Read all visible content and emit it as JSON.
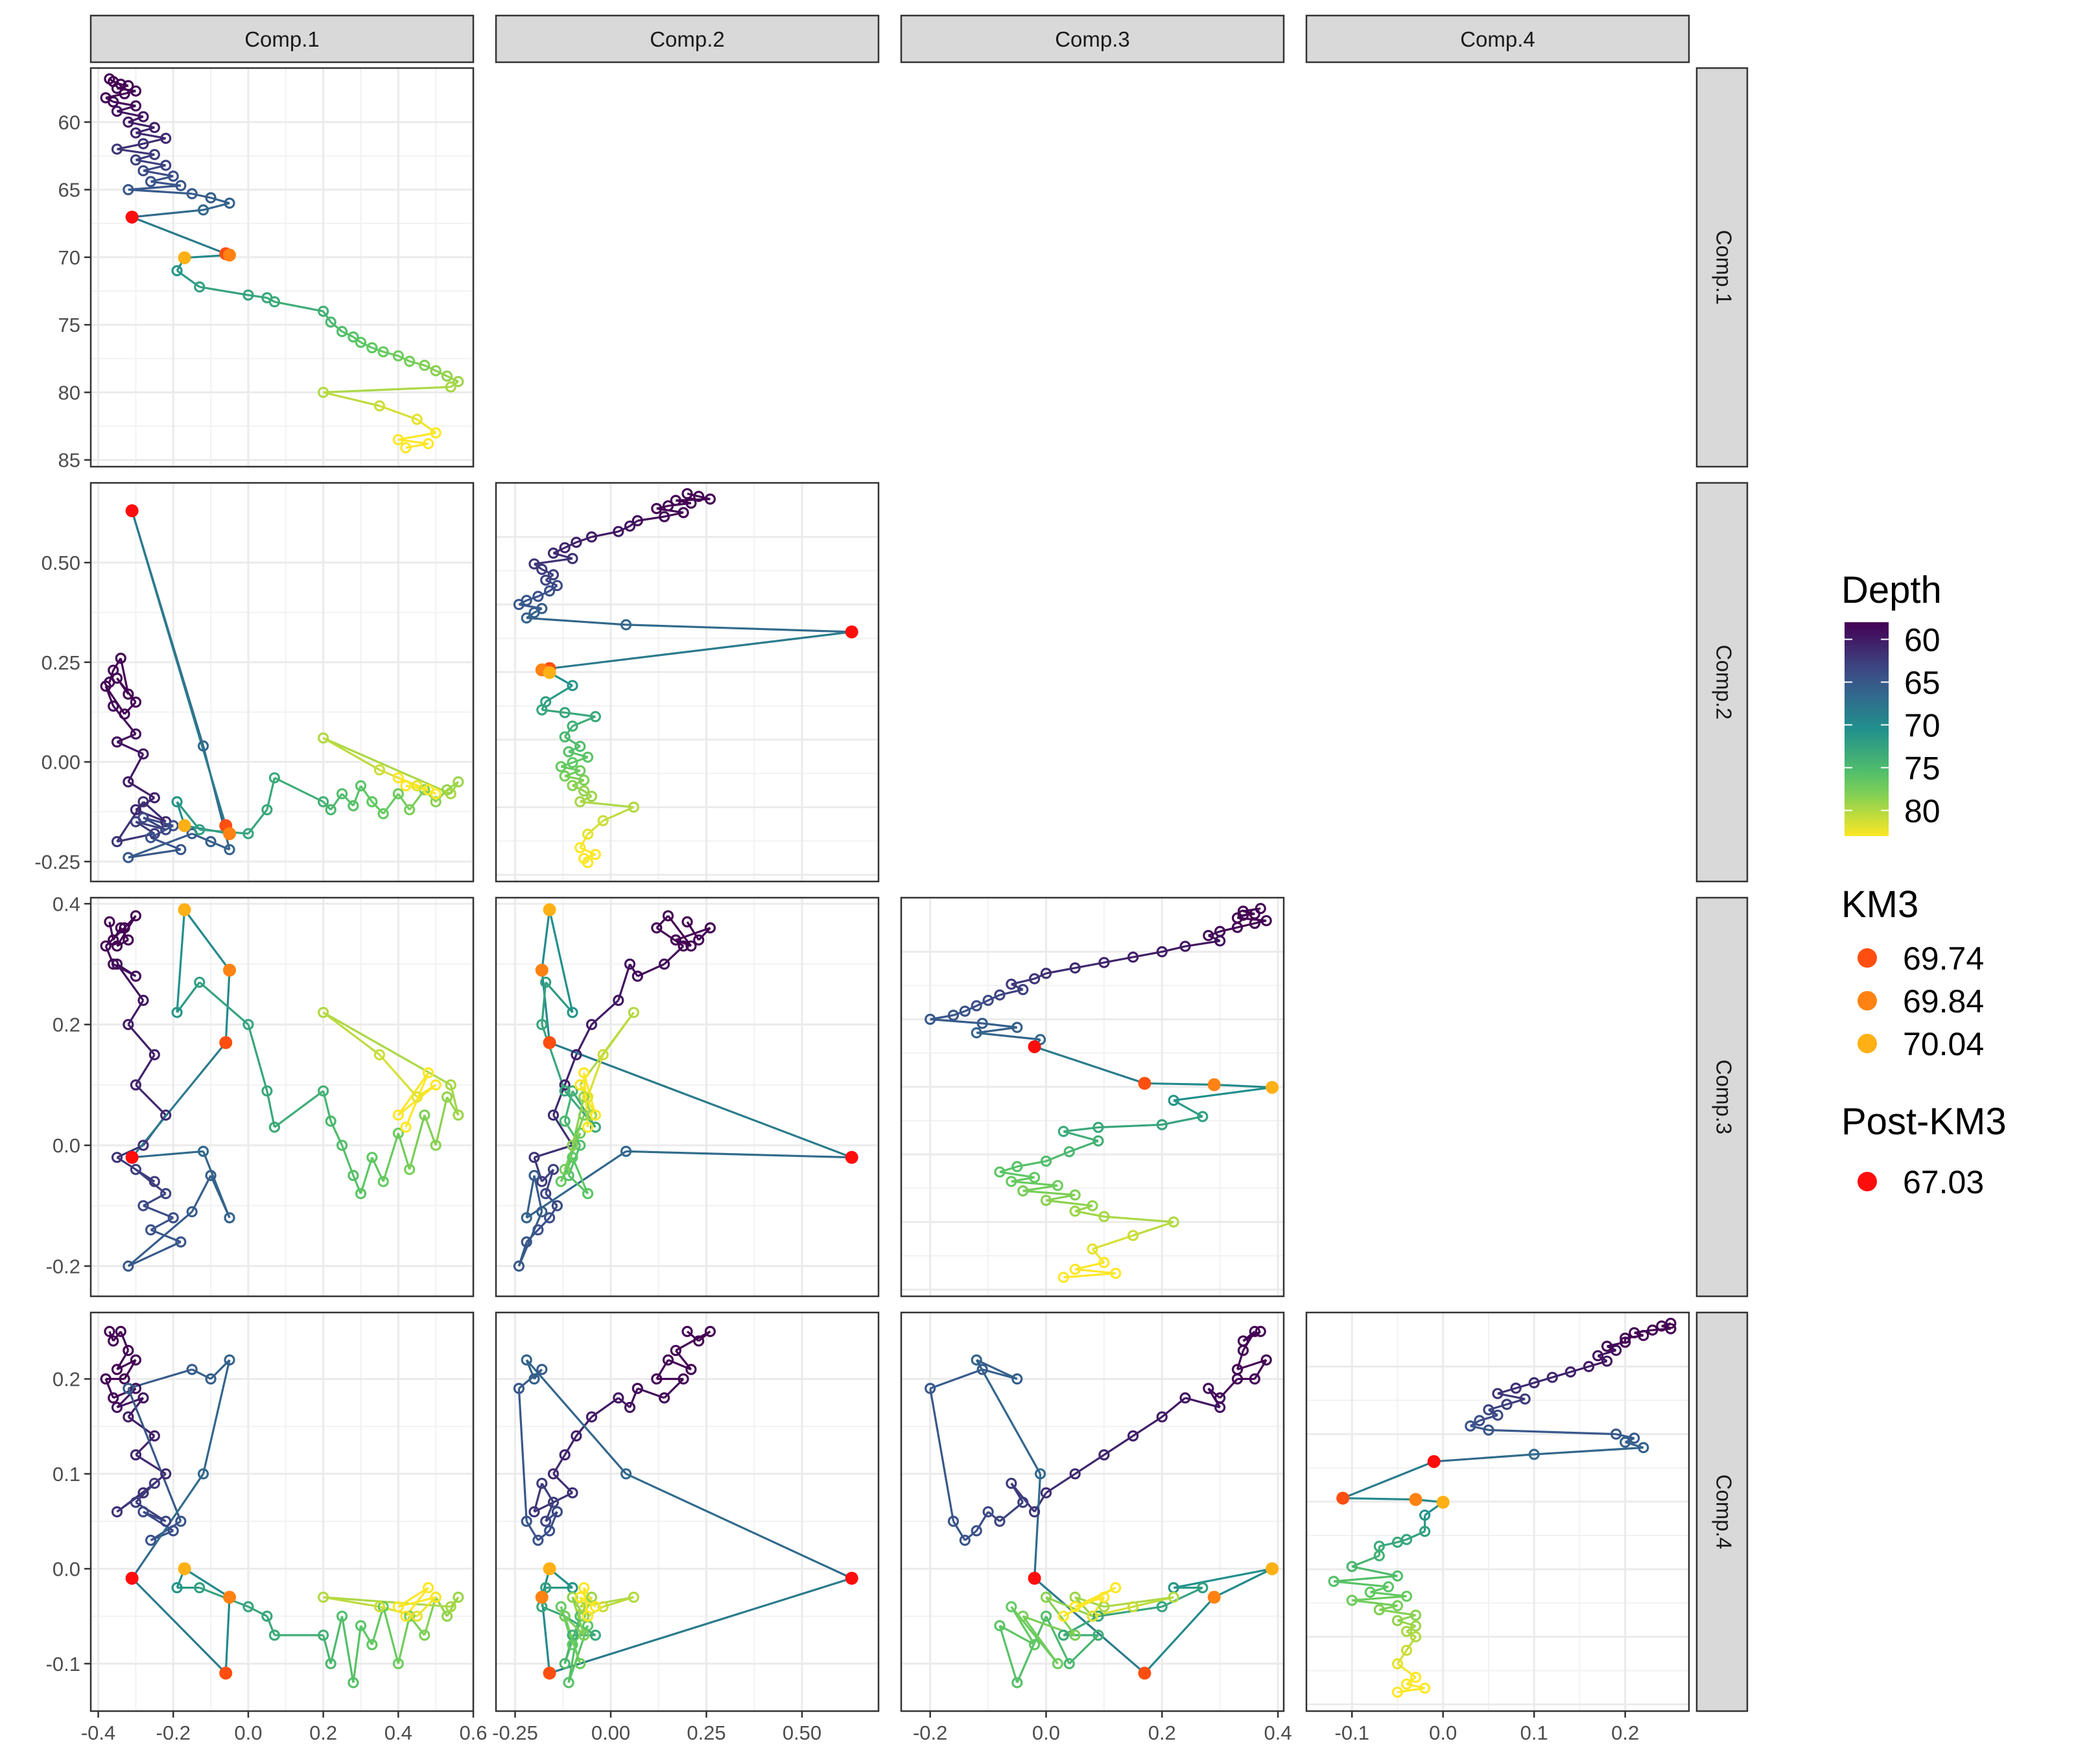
{
  "chart_data": {
    "type": "scatter",
    "layout": "pairs-matrix-lower-triangle",
    "components": [
      "Comp.1",
      "Comp.2",
      "Comp.3",
      "Comp.4"
    ],
    "axes": {
      "Comp.1": {
        "range": [
          -0.42,
          0.6
        ],
        "ticks": [
          -0.4,
          -0.2,
          0.0,
          0.2,
          0.4,
          0.6
        ],
        "tick_labels": [
          "-0.4",
          "-0.2",
          "0.0",
          "0.2",
          "0.4",
          "0.6"
        ]
      },
      "Comp.2": {
        "range": [
          -0.3,
          0.7
        ],
        "ticks": [
          -0.25,
          0.0,
          0.25,
          0.5
        ],
        "tick_labels": [
          "-0.25",
          "0.00",
          "0.25",
          "0.50"
        ]
      },
      "Comp.3": {
        "range": [
          -0.25,
          0.41
        ],
        "ticks": [
          -0.2,
          0.0,
          0.2,
          0.4
        ],
        "tick_labels": [
          "-0.2",
          "0.0",
          "0.2",
          "0.4"
        ]
      },
      "Comp.4": {
        "range": [
          -0.15,
          0.27
        ],
        "ticks": [
          -0.1,
          0.0,
          0.1,
          0.2
        ],
        "tick_labels": [
          "-0.1",
          "0.0",
          "0.1",
          "0.2"
        ]
      }
    },
    "depth_axis": {
      "range": [
        56,
        85.5
      ],
      "reversed": true,
      "ticks": [
        60,
        65,
        70,
        75,
        80,
        85
      ],
      "tick_labels": [
        "60",
        "65",
        "70",
        "75",
        "80",
        "85"
      ]
    },
    "legend": {
      "placement": "right",
      "depth": {
        "title": "Depth",
        "labels": [
          "60",
          "65",
          "70",
          "75",
          "80"
        ],
        "range": [
          58,
          83
        ],
        "palette": "viridis-reversed"
      },
      "km3": {
        "title": "KM3",
        "entries": [
          {
            "label": "69.74",
            "color": "#FF4E10"
          },
          {
            "label": "69.84",
            "color": "#FF8212"
          },
          {
            "label": "70.04",
            "color": "#FFB015"
          }
        ]
      },
      "post_km3": {
        "title": "Post-KM3",
        "entries": [
          {
            "label": "67.03",
            "color": "#FF0D0D"
          }
        ]
      }
    },
    "samples": [
      {
        "depth": 56.8,
        "c1": -0.37,
        "c2": 0.2,
        "c3": 0.37,
        "c4": 0.25
      },
      {
        "depth": 57.0,
        "c1": -0.36,
        "c2": 0.23,
        "c3": 0.34,
        "c4": 0.24
      },
      {
        "depth": 57.2,
        "c1": -0.34,
        "c2": 0.26,
        "c3": 0.36,
        "c4": 0.25
      },
      {
        "depth": 57.3,
        "c1": -0.32,
        "c2": 0.17,
        "c3": 0.34,
        "c4": 0.23
      },
      {
        "depth": 57.5,
        "c1": -0.35,
        "c2": 0.21,
        "c3": 0.33,
        "c4": 0.21
      },
      {
        "depth": 57.7,
        "c1": -0.3,
        "c2": 0.15,
        "c3": 0.38,
        "c4": 0.22
      },
      {
        "depth": 57.9,
        "c1": -0.33,
        "c2": 0.12,
        "c3": 0.36,
        "c4": 0.2
      },
      {
        "depth": 58.2,
        "c1": -0.38,
        "c2": 0.19,
        "c3": 0.33,
        "c4": 0.2
      },
      {
        "depth": 58.5,
        "c1": -0.36,
        "c2": 0.14,
        "c3": 0.3,
        "c4": 0.18
      },
      {
        "depth": 58.8,
        "c1": -0.3,
        "c2": 0.07,
        "c3": 0.28,
        "c4": 0.19
      },
      {
        "depth": 59.2,
        "c1": -0.35,
        "c2": 0.05,
        "c3": 0.3,
        "c4": 0.17
      },
      {
        "depth": 59.6,
        "c1": -0.28,
        "c2": 0.02,
        "c3": 0.24,
        "c4": 0.18
      },
      {
        "depth": 60.0,
        "c1": -0.32,
        "c2": -0.05,
        "c3": 0.2,
        "c4": 0.16
      },
      {
        "depth": 60.4,
        "c1": -0.25,
        "c2": -0.09,
        "c3": 0.15,
        "c4": 0.14
      },
      {
        "depth": 60.8,
        "c1": -0.3,
        "c2": -0.12,
        "c3": 0.1,
        "c4": 0.12
      },
      {
        "depth": 61.2,
        "c1": -0.22,
        "c2": -0.15,
        "c3": 0.05,
        "c4": 0.1
      },
      {
        "depth": 61.6,
        "c1": -0.28,
        "c2": -0.1,
        "c3": 0.0,
        "c4": 0.08
      },
      {
        "depth": 62.0,
        "c1": -0.35,
        "c2": -0.2,
        "c3": -0.02,
        "c4": 0.06
      },
      {
        "depth": 62.4,
        "c1": -0.25,
        "c2": -0.18,
        "c3": -0.06,
        "c4": 0.09
      },
      {
        "depth": 62.8,
        "c1": -0.3,
        "c2": -0.15,
        "c3": -0.04,
        "c4": 0.07
      },
      {
        "depth": 63.2,
        "c1": -0.22,
        "c2": -0.17,
        "c3": -0.08,
        "c4": 0.05
      },
      {
        "depth": 63.6,
        "c1": -0.28,
        "c2": -0.14,
        "c3": -0.1,
        "c4": 0.06
      },
      {
        "depth": 64.0,
        "c1": -0.2,
        "c2": -0.16,
        "c3": -0.12,
        "c4": 0.04
      },
      {
        "depth": 64.4,
        "c1": -0.26,
        "c2": -0.19,
        "c3": -0.14,
        "c4": 0.03
      },
      {
        "depth": 64.7,
        "c1": -0.18,
        "c2": -0.22,
        "c3": -0.16,
        "c4": 0.05
      },
      {
        "depth": 65.0,
        "c1": -0.32,
        "c2": -0.24,
        "c3": -0.2,
        "c4": 0.19
      },
      {
        "depth": 65.3,
        "c1": -0.15,
        "c2": -0.18,
        "c3": -0.11,
        "c4": 0.21
      },
      {
        "depth": 65.6,
        "c1": -0.1,
        "c2": -0.2,
        "c3": -0.05,
        "c4": 0.2
      },
      {
        "depth": 66.0,
        "c1": -0.05,
        "c2": -0.22,
        "c3": -0.12,
        "c4": 0.22
      },
      {
        "depth": 66.5,
        "c1": -0.12,
        "c2": 0.04,
        "c3": -0.01,
        "c4": 0.1
      },
      {
        "depth": 67.03,
        "c1": -0.31,
        "c2": 0.63,
        "c3": -0.02,
        "c4": -0.01,
        "marker": "post_km3"
      },
      {
        "depth": 69.74,
        "c1": -0.06,
        "c2": -0.16,
        "c3": 0.17,
        "c4": -0.11,
        "marker": "km3"
      },
      {
        "depth": 69.84,
        "c1": -0.05,
        "c2": -0.18,
        "c3": 0.29,
        "c4": -0.03,
        "marker": "km3"
      },
      {
        "depth": 70.04,
        "c1": -0.17,
        "c2": -0.16,
        "c3": 0.39,
        "c4": 0.0,
        "marker": "km3"
      },
      {
        "depth": 71.0,
        "c1": -0.19,
        "c2": -0.1,
        "c3": 0.22,
        "c4": -0.02
      },
      {
        "depth": 72.2,
        "c1": -0.13,
        "c2": -0.17,
        "c3": 0.27,
        "c4": -0.02
      },
      {
        "depth": 72.8,
        "c1": 0.0,
        "c2": -0.18,
        "c3": 0.2,
        "c4": -0.04
      },
      {
        "depth": 73.0,
        "c1": 0.05,
        "c2": -0.12,
        "c3": 0.09,
        "c4": -0.05
      },
      {
        "depth": 73.3,
        "c1": 0.07,
        "c2": -0.04,
        "c3": 0.03,
        "c4": -0.07
      },
      {
        "depth": 74.0,
        "c1": 0.2,
        "c2": -0.1,
        "c3": 0.09,
        "c4": -0.07
      },
      {
        "depth": 74.8,
        "c1": 0.22,
        "c2": -0.12,
        "c3": 0.04,
        "c4": -0.1
      },
      {
        "depth": 75.5,
        "c1": 0.25,
        "c2": -0.08,
        "c3": 0.0,
        "c4": -0.05
      },
      {
        "depth": 75.9,
        "c1": 0.28,
        "c2": -0.11,
        "c3": -0.05,
        "c4": -0.12
      },
      {
        "depth": 76.3,
        "c1": 0.3,
        "c2": -0.06,
        "c3": -0.08,
        "c4": -0.06
      },
      {
        "depth": 76.7,
        "c1": 0.33,
        "c2": -0.1,
        "c3": -0.02,
        "c4": -0.08
      },
      {
        "depth": 77.0,
        "c1": 0.36,
        "c2": -0.13,
        "c3": -0.06,
        "c4": -0.04
      },
      {
        "depth": 77.3,
        "c1": 0.4,
        "c2": -0.08,
        "c3": 0.02,
        "c4": -0.1
      },
      {
        "depth": 77.7,
        "c1": 0.43,
        "c2": -0.12,
        "c3": -0.04,
        "c4": -0.05
      },
      {
        "depth": 78.0,
        "c1": 0.47,
        "c2": -0.07,
        "c3": 0.05,
        "c4": -0.07
      },
      {
        "depth": 78.4,
        "c1": 0.5,
        "c2": -0.1,
        "c3": 0.0,
        "c4": -0.03
      },
      {
        "depth": 78.8,
        "c1": 0.53,
        "c2": -0.07,
        "c3": 0.08,
        "c4": -0.05
      },
      {
        "depth": 79.2,
        "c1": 0.56,
        "c2": -0.05,
        "c3": 0.05,
        "c4": -0.03
      },
      {
        "depth": 79.6,
        "c1": 0.54,
        "c2": -0.08,
        "c3": 0.1,
        "c4": -0.04
      },
      {
        "depth": 80.0,
        "c1": 0.2,
        "c2": 0.06,
        "c3": 0.22,
        "c4": -0.03
      },
      {
        "depth": 81.0,
        "c1": 0.35,
        "c2": -0.02,
        "c3": 0.15,
        "c4": -0.04
      },
      {
        "depth": 82.0,
        "c1": 0.45,
        "c2": -0.06,
        "c3": 0.08,
        "c4": -0.05
      },
      {
        "depth": 83.0,
        "c1": 0.5,
        "c2": -0.08,
        "c3": 0.1,
        "c4": -0.03
      },
      {
        "depth": 83.5,
        "c1": 0.4,
        "c2": -0.04,
        "c3": 0.05,
        "c4": -0.04
      },
      {
        "depth": 83.8,
        "c1": 0.48,
        "c2": -0.07,
        "c3": 0.12,
        "c4": -0.02
      },
      {
        "depth": 84.1,
        "c1": 0.42,
        "c2": -0.06,
        "c3": 0.03,
        "c4": -0.05
      }
    ]
  }
}
